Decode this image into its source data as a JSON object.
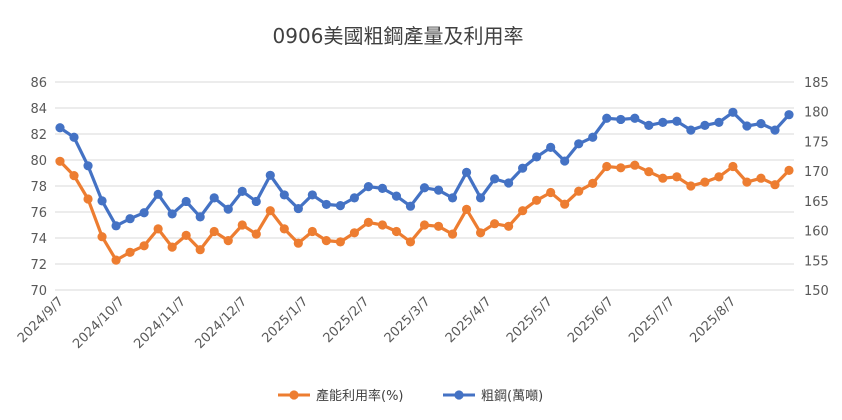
{
  "chart_data": {
    "type": "line",
    "title": "0906美國粗鋼產量及利用率",
    "x_tick_labels": [
      "2024/9/7",
      "2024/10/7",
      "2024/11/7",
      "2024/12/7",
      "2025/1/7",
      "2025/2/7",
      "2025/3/7",
      "2025/4/7",
      "2025/5/7",
      "2025/6/7",
      "2025/7/7",
      "2025/8/7"
    ],
    "y_left": {
      "min": 70,
      "max": 86,
      "step": 2,
      "ticks": [
        70,
        72,
        74,
        76,
        78,
        80,
        82,
        84,
        86
      ]
    },
    "y_right": {
      "min": 150,
      "max": 185,
      "step": 5,
      "ticks": [
        150,
        155,
        160,
        165,
        170,
        175,
        180,
        185
      ]
    },
    "grid": true,
    "legend_position": "bottom",
    "series": [
      {
        "name": "產能利用率(%)",
        "axis": "left",
        "color": "#ED7D31",
        "values": [
          79.9,
          78.8,
          77.0,
          74.1,
          72.3,
          72.9,
          73.4,
          74.7,
          73.3,
          74.2,
          73.1,
          74.5,
          73.8,
          75.0,
          74.3,
          76.1,
          74.7,
          73.6,
          74.5,
          73.8,
          73.7,
          74.4,
          75.2,
          75.0,
          74.5,
          73.7,
          75.0,
          74.9,
          74.3,
          76.2,
          74.4,
          75.1,
          74.9,
          76.1,
          76.9,
          77.5,
          76.6,
          77.6,
          78.2,
          79.5,
          79.4,
          79.6,
          79.1,
          78.6,
          78.7,
          78.0,
          78.3,
          78.7,
          79.5,
          78.3,
          78.6,
          78.1,
          79.2
        ]
      },
      {
        "name": "粗鋼(萬噸)",
        "axis": "right",
        "color": "#4472C4",
        "values": [
          177.3,
          175.7,
          170.9,
          165.0,
          160.8,
          162.0,
          163.0,
          166.1,
          162.8,
          164.9,
          162.3,
          165.5,
          163.6,
          166.6,
          164.9,
          169.3,
          166.0,
          163.7,
          166.0,
          164.4,
          164.2,
          165.5,
          167.4,
          167.1,
          165.8,
          164.1,
          167.2,
          166.8,
          165.5,
          169.8,
          165.5,
          168.7,
          168.0,
          170.5,
          172.4,
          174.0,
          171.7,
          174.6,
          175.7,
          178.9,
          178.7,
          178.9,
          177.7,
          178.2,
          178.4,
          176.9,
          177.7,
          178.2,
          179.9,
          177.6,
          178.0,
          176.9,
          179.5
        ]
      }
    ]
  }
}
